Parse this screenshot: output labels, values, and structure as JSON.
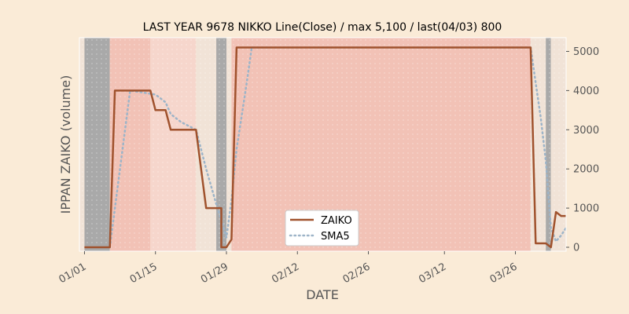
{
  "chart_data": {
    "type": "line",
    "title": "LAST YEAR 9678 NIKKO Line(Close) / max 5,100 / last(04/03) 800",
    "xlabel": "DATE",
    "ylabel": "IPPAN ZAIKO (volume)",
    "x_tick_labels": [
      "01/01",
      "01/15",
      "01/29",
      "02/12",
      "02/26",
      "03/12",
      "03/26"
    ],
    "y_ticks": [
      0,
      1000,
      2000,
      3000,
      4000,
      5000
    ],
    "ylim": [
      -100,
      5350
    ],
    "grid": false,
    "legend_position": "lower-center",
    "year": 2020,
    "shaded_ranges": [
      {
        "start": "2019-12-31",
        "end": "2020-01-01",
        "color": "#f1e3d7"
      },
      {
        "start": "2020-01-01",
        "end": "2020-01-06",
        "color": "#a9a9a9"
      },
      {
        "start": "2020-01-06",
        "end": "2020-01-14",
        "color": "#f2c2b6"
      },
      {
        "start": "2020-01-14",
        "end": "2020-01-23",
        "color": "#f6d6cc"
      },
      {
        "start": "2020-01-23",
        "end": "2020-01-27",
        "color": "#f1e3d7"
      },
      {
        "start": "2020-01-27",
        "end": "2020-01-29",
        "color": "#a9a9a9"
      },
      {
        "start": "2020-01-29",
        "end": "2020-01-30",
        "color": "#f1e3d7"
      },
      {
        "start": "2020-01-30",
        "end": "2020-03-29",
        "color": "#f2c2b6"
      },
      {
        "start": "2020-03-29",
        "end": "2020-04-01",
        "color": "#f1e3d7"
      },
      {
        "start": "2020-04-01",
        "end": "2020-04-02",
        "color": "#a9a9a9"
      },
      {
        "start": "2020-04-02",
        "end": "2020-04-05",
        "color": "#f1e3d7"
      }
    ],
    "series": [
      {
        "name": "ZAIKO",
        "color": "#a0522d",
        "style": "solid",
        "points": [
          [
            "2020-01-01",
            0
          ],
          [
            "2020-01-06",
            0
          ],
          [
            "2020-01-07",
            4000
          ],
          [
            "2020-01-14",
            4000
          ],
          [
            "2020-01-15",
            3500
          ],
          [
            "2020-01-17",
            3500
          ],
          [
            "2020-01-18",
            3000
          ],
          [
            "2020-01-23",
            3000
          ],
          [
            "2020-01-25",
            1000
          ],
          [
            "2020-01-28",
            1000
          ],
          [
            "2020-01-28",
            0
          ],
          [
            "2020-01-29",
            0
          ],
          [
            "2020-01-30",
            200
          ],
          [
            "2020-01-31",
            5100
          ],
          [
            "2020-03-29",
            5100
          ],
          [
            "2020-03-30",
            100
          ],
          [
            "2020-04-01",
            100
          ],
          [
            "2020-04-02",
            0
          ],
          [
            "2020-04-03",
            900
          ],
          [
            "2020-04-04",
            800
          ],
          [
            "2020-04-05",
            800
          ]
        ]
      },
      {
        "name": "SMA5",
        "color": "#9db4c8",
        "style": "dotted",
        "points": [
          [
            "2020-01-06",
            0
          ],
          [
            "2020-01-10",
            4000
          ],
          [
            "2020-01-15",
            3900
          ],
          [
            "2020-01-17",
            3700
          ],
          [
            "2020-01-18",
            3400
          ],
          [
            "2020-01-20",
            3200
          ],
          [
            "2020-01-23",
            3000
          ],
          [
            "2020-01-25",
            2000
          ],
          [
            "2020-01-27",
            1100
          ],
          [
            "2020-01-28",
            700
          ],
          [
            "2020-01-29",
            250
          ],
          [
            "2020-01-30",
            1200
          ],
          [
            "2020-01-31",
            2500
          ],
          [
            "2020-02-02",
            4200
          ],
          [
            "2020-02-03",
            5100
          ],
          [
            "2020-03-29",
            5100
          ],
          [
            "2020-03-30",
            4200
          ],
          [
            "2020-03-31",
            3300
          ],
          [
            "2020-04-01",
            2200
          ],
          [
            "2020-04-02",
            500
          ],
          [
            "2020-04-03",
            150
          ],
          [
            "2020-04-04",
            300
          ],
          [
            "2020-04-05",
            500
          ]
        ]
      }
    ]
  }
}
